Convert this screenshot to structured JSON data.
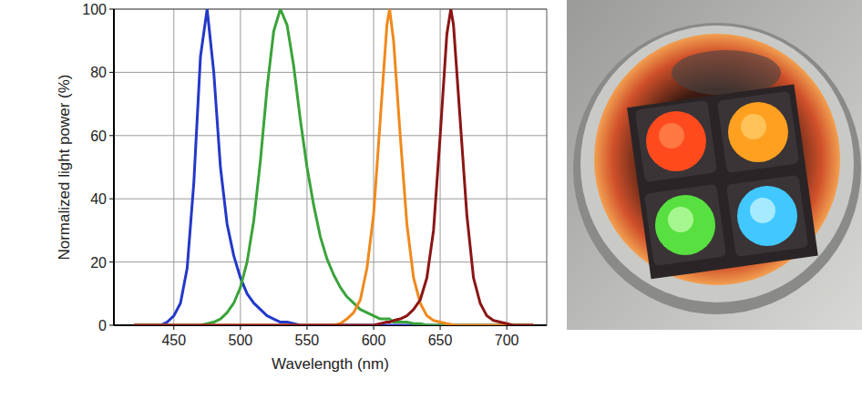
{
  "chart_data": {
    "type": "line",
    "xlabel": "Wavelength (nm)",
    "ylabel": "Normalized light power (%)",
    "x": [
      420,
      425,
      430,
      435,
      440,
      445,
      450,
      455,
      460,
      465,
      470,
      475,
      480,
      485,
      490,
      495,
      500,
      505,
      510,
      515,
      520,
      525,
      530,
      535,
      540,
      545,
      550,
      555,
      560,
      565,
      570,
      575,
      580,
      585,
      590,
      595,
      600,
      605,
      610,
      612,
      615,
      620,
      625,
      630,
      635,
      640,
      645,
      650,
      655,
      658,
      660,
      665,
      670,
      675,
      680,
      685,
      690,
      695,
      700,
      705,
      710,
      715,
      720
    ],
    "series": [
      {
        "color": "#2438c8",
        "values": [
          0,
          0,
          0,
          0,
          0,
          1,
          3,
          7,
          18,
          45,
          85,
          100,
          80,
          50,
          32,
          22,
          15,
          10,
          7,
          5,
          3,
          2,
          1,
          1,
          0.5,
          0,
          0,
          0,
          0,
          0,
          0,
          0,
          0,
          0,
          0,
          0,
          0,
          0,
          0,
          0,
          0,
          0,
          0,
          0,
          0,
          0,
          0,
          0,
          0,
          0,
          0,
          0,
          0,
          0,
          0,
          0,
          0,
          0,
          0,
          0,
          0,
          0,
          0
        ]
      },
      {
        "color": "#3aa33a",
        "values": [
          0,
          0,
          0,
          0,
          0,
          0,
          0,
          0,
          0,
          0,
          0,
          0.5,
          1,
          2,
          4,
          7,
          12,
          20,
          33,
          52,
          75,
          93,
          100,
          95,
          82,
          65,
          50,
          38,
          28,
          21,
          16,
          12,
          9,
          7,
          5,
          4,
          3,
          2,
          2,
          2,
          1,
          1,
          1,
          0.5,
          0.5,
          0,
          0,
          0,
          0,
          0,
          0,
          0,
          0,
          0,
          0,
          0,
          0,
          0,
          0,
          0,
          0,
          0,
          0
        ]
      },
      {
        "color": "#f0891c",
        "values": [
          0,
          0,
          0,
          0,
          0,
          0,
          0,
          0,
          0,
          0,
          0,
          0,
          0,
          0,
          0,
          0,
          0,
          0,
          0,
          0,
          0,
          0,
          0,
          0,
          0,
          0,
          0,
          0,
          0,
          0,
          0,
          0.5,
          2,
          4,
          8,
          18,
          35,
          65,
          95,
          100,
          90,
          60,
          32,
          15,
          7,
          3,
          1.5,
          1,
          0.5,
          0.3,
          0,
          0,
          0,
          0,
          0,
          0,
          0,
          0,
          0,
          0,
          0,
          0,
          0
        ]
      },
      {
        "color": "#8b1515",
        "values": [
          0,
          0,
          0,
          0,
          0,
          0,
          0,
          0,
          0,
          0,
          0,
          0,
          0,
          0,
          0,
          0,
          0,
          0,
          0,
          0,
          0,
          0,
          0,
          0,
          0,
          0,
          0,
          0,
          0,
          0,
          0,
          0,
          0,
          0,
          0,
          0,
          0,
          0.5,
          1,
          1,
          1.5,
          2,
          3,
          5,
          8,
          15,
          30,
          60,
          92,
          100,
          95,
          65,
          35,
          15,
          7,
          3,
          1.5,
          1,
          0.5,
          0,
          0,
          0,
          0
        ]
      }
    ],
    "xlim": [
      405,
      730
    ],
    "xticks": [
      450,
      500,
      550,
      600,
      650,
      700
    ],
    "ylim": [
      0,
      100
    ],
    "yticks": [
      0,
      20,
      40,
      60,
      80,
      100
    ],
    "grid": true
  }
}
